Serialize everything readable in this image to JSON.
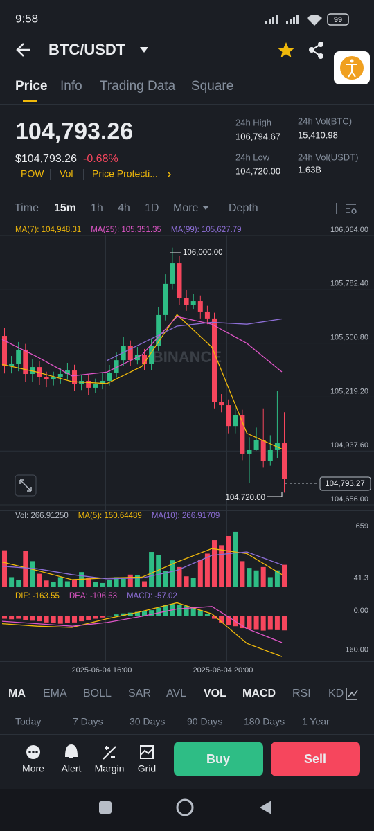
{
  "status_bar": {
    "time": "9:58",
    "battery": "99"
  },
  "header": {
    "pair": "BTC/USDT"
  },
  "tabs": [
    "Price",
    "Info",
    "Trading Data",
    "Square"
  ],
  "ticker": {
    "last_price": "104,793.26",
    "usd_price": "$104,793.26",
    "change": "-0.68%",
    "tags": [
      "POW",
      "Vol",
      "Price Protecti..."
    ],
    "stats": [
      {
        "label": "24h High",
        "value": "106,794.67"
      },
      {
        "label": "24h Vol(BTC)",
        "value": "15,410.98"
      },
      {
        "label": "24h Low",
        "value": "104,720.00"
      },
      {
        "label": "24h Vol(USDT)",
        "value": "1.63B"
      }
    ]
  },
  "intervals": [
    "Time",
    "15m",
    "1h",
    "4h",
    "1D",
    "More",
    "Depth"
  ],
  "price_chart": {
    "type": "candlestick",
    "watermark": "BINANCE",
    "up_color": "#2ebd85",
    "down_color": "#f6465d",
    "ylim": [
      104656,
      106064
    ],
    "yticks": [
      {
        "value": 106064,
        "label": "106,064.00"
      },
      {
        "value": 105782.4,
        "label": "105,782.40"
      },
      {
        "value": 105500.8,
        "label": "105,500.80"
      },
      {
        "value": 105219.2,
        "label": "105,219.20"
      },
      {
        "value": 104937.6,
        "label": "104,937.60"
      },
      {
        "value": 104656,
        "label": "104,656.00"
      }
    ],
    "candles": {
      "open": [
        105539,
        105383,
        105394,
        105467,
        105340,
        105376,
        105322,
        105311,
        105322,
        105340,
        105358,
        105286,
        105304,
        105268,
        105286,
        105304,
        105347,
        105412,
        105485,
        105412,
        105441,
        105394,
        105485,
        105648,
        105811,
        105919,
        105738,
        105702,
        105720,
        105666,
        105630,
        105195,
        105177,
        105068,
        105123,
        104924,
        104942,
        104996,
        104887,
        104942,
        104978
      ],
      "high": [
        105579,
        105434,
        105507,
        105497,
        105416,
        105406,
        105352,
        105352,
        105370,
        105398,
        105388,
        105334,
        105334,
        105316,
        105344,
        105387,
        105452,
        105535,
        105515,
        105481,
        105471,
        105525,
        105688,
        105861,
        106000,
        105959,
        105778,
        105760,
        105750,
        105696,
        105660,
        105235,
        105207,
        105163,
        105153,
        105010,
        105060,
        105160,
        105020,
        105250,
        105140
      ],
      "low": [
        105343,
        105343,
        105354,
        105300,
        105300,
        105282,
        105271,
        105280,
        105290,
        105310,
        105250,
        105256,
        105230,
        105240,
        105260,
        105280,
        105320,
        105380,
        105380,
        105390,
        105360,
        105360,
        105460,
        105620,
        105780,
        105700,
        105670,
        105680,
        105630,
        105600,
        105160,
        105140,
        105030,
        105030,
        104890,
        104770,
        104940,
        104850,
        104860,
        104900,
        104720
      ],
      "close": [
        105383,
        105394,
        105467,
        105340,
        105376,
        105322,
        105311,
        105322,
        105340,
        105358,
        105286,
        105304,
        105268,
        105286,
        105304,
        105347,
        105412,
        105485,
        105412,
        105441,
        105394,
        105485,
        105648,
        105811,
        105919,
        105738,
        105702,
        105720,
        105666,
        105630,
        105195,
        105177,
        105068,
        105123,
        104924,
        104942,
        104996,
        104887,
        104942,
        104978,
        104793
      ]
    },
    "series": [
      {
        "name": "MA(7): 104,948.31",
        "color": "#f0b90b",
        "x": [
          0,
          5,
          10,
          15,
          20,
          25,
          30,
          35,
          40
        ],
        "values": [
          105390,
          105350,
          105300,
          105290,
          105380,
          105650,
          105480,
          105030,
          104948
        ]
      },
      {
        "name": "MA(25): 105,351.35",
        "color": "#e056c8",
        "x": [
          0,
          5,
          10,
          15,
          20,
          25,
          30,
          35,
          40
        ],
        "values": [
          105520,
          105430,
          105330,
          105350,
          105440,
          105640,
          105600,
          105500,
          105351
        ]
      },
      {
        "name": "MA(99): 105,627.79",
        "color": "#8e6fd8",
        "x": [
          15,
          20,
          25,
          30,
          35,
          40
        ],
        "values": [
          105410,
          105500,
          105590,
          105610,
          105600,
          105628
        ]
      }
    ],
    "annotations": {
      "high": "106,000.00",
      "low": "104,720.00",
      "last": "104,793.27"
    }
  },
  "volume_chart": {
    "type": "bar",
    "ylim": [
      0,
      750
    ],
    "yticks": [
      659,
      41.3
    ],
    "label": "Vol: 266.91250",
    "values": [
      440,
      120,
      90,
      430,
      310,
      160,
      80,
      60,
      120,
      70,
      90,
      180,
      110,
      60,
      50,
      90,
      120,
      100,
      150,
      140,
      70,
      420,
      380,
      190,
      320,
      240,
      130,
      110,
      330,
      400,
      560,
      500,
      610,
      660,
      310,
      230,
      200,
      240,
      120,
      200,
      267
    ],
    "series": [
      {
        "name": "MA(5): 150.64489",
        "color": "#f0b90b",
        "x": [
          0,
          5,
          10,
          15,
          20,
          25,
          30,
          35,
          40
        ],
        "values": [
          300,
          200,
          90,
          110,
          120,
          300,
          460,
          400,
          151
        ]
      },
      {
        "name": "MA(10): 266.91709",
        "color": "#8e6fd8",
        "x": [
          0,
          5,
          10,
          15,
          20,
          25,
          30,
          35,
          40
        ],
        "values": [
          250,
          220,
          150,
          100,
          110,
          200,
          380,
          420,
          267
        ]
      }
    ]
  },
  "macd_chart": {
    "type": "bar",
    "ylim": [
      -183,
      107
    ],
    "yticks": [
      {
        "value": 0,
        "label": "0.00"
      },
      {
        "value": -160,
        "label": "-160.00"
      }
    ],
    "histogram": {
      "name": "MACD: -57.02",
      "values": [
        -10,
        -12,
        -10,
        -15,
        -18,
        -20,
        -25,
        -28,
        -30,
        -28,
        -25,
        -20,
        -15,
        -10,
        -5,
        2,
        8,
        12,
        15,
        18,
        20,
        25,
        35,
        45,
        50,
        48,
        42,
        35,
        25,
        10,
        -10,
        -25,
        -35,
        -40,
        -48,
        -52,
        -55,
        -58,
        -55,
        -56,
        -57
      ]
    },
    "series": [
      {
        "name": "DIF: -163.55",
        "color": "#f0b90b",
        "x": [
          0,
          5,
          10,
          15,
          20,
          25,
          30,
          35,
          40
        ],
        "values": [
          -30,
          -40,
          -45,
          -10,
          20,
          55,
          10,
          -110,
          -163.55
        ]
      },
      {
        "name": "DEA: -106.53",
        "color": "#e056c8",
        "x": [
          0,
          5,
          10,
          15,
          20,
          25,
          30,
          35,
          40
        ],
        "values": [
          -20,
          -30,
          -40,
          -25,
          0,
          30,
          40,
          -50,
          -106.53
        ]
      }
    ]
  },
  "x_labels": [
    "2025-06-04 16:00",
    "2025-06-04 20:00"
  ],
  "indicators": [
    "MA",
    "EMA",
    "BOLL",
    "SAR",
    "AVL",
    "VOL",
    "MACD",
    "RSI",
    "KD"
  ],
  "ranges": [
    "Today",
    "7 Days",
    "30 Days",
    "90 Days",
    "180 Days",
    "1 Year"
  ],
  "actions": [
    "More",
    "Alert",
    "Margin",
    "Grid"
  ],
  "buttons": {
    "buy": "Buy",
    "sell": "Sell"
  }
}
